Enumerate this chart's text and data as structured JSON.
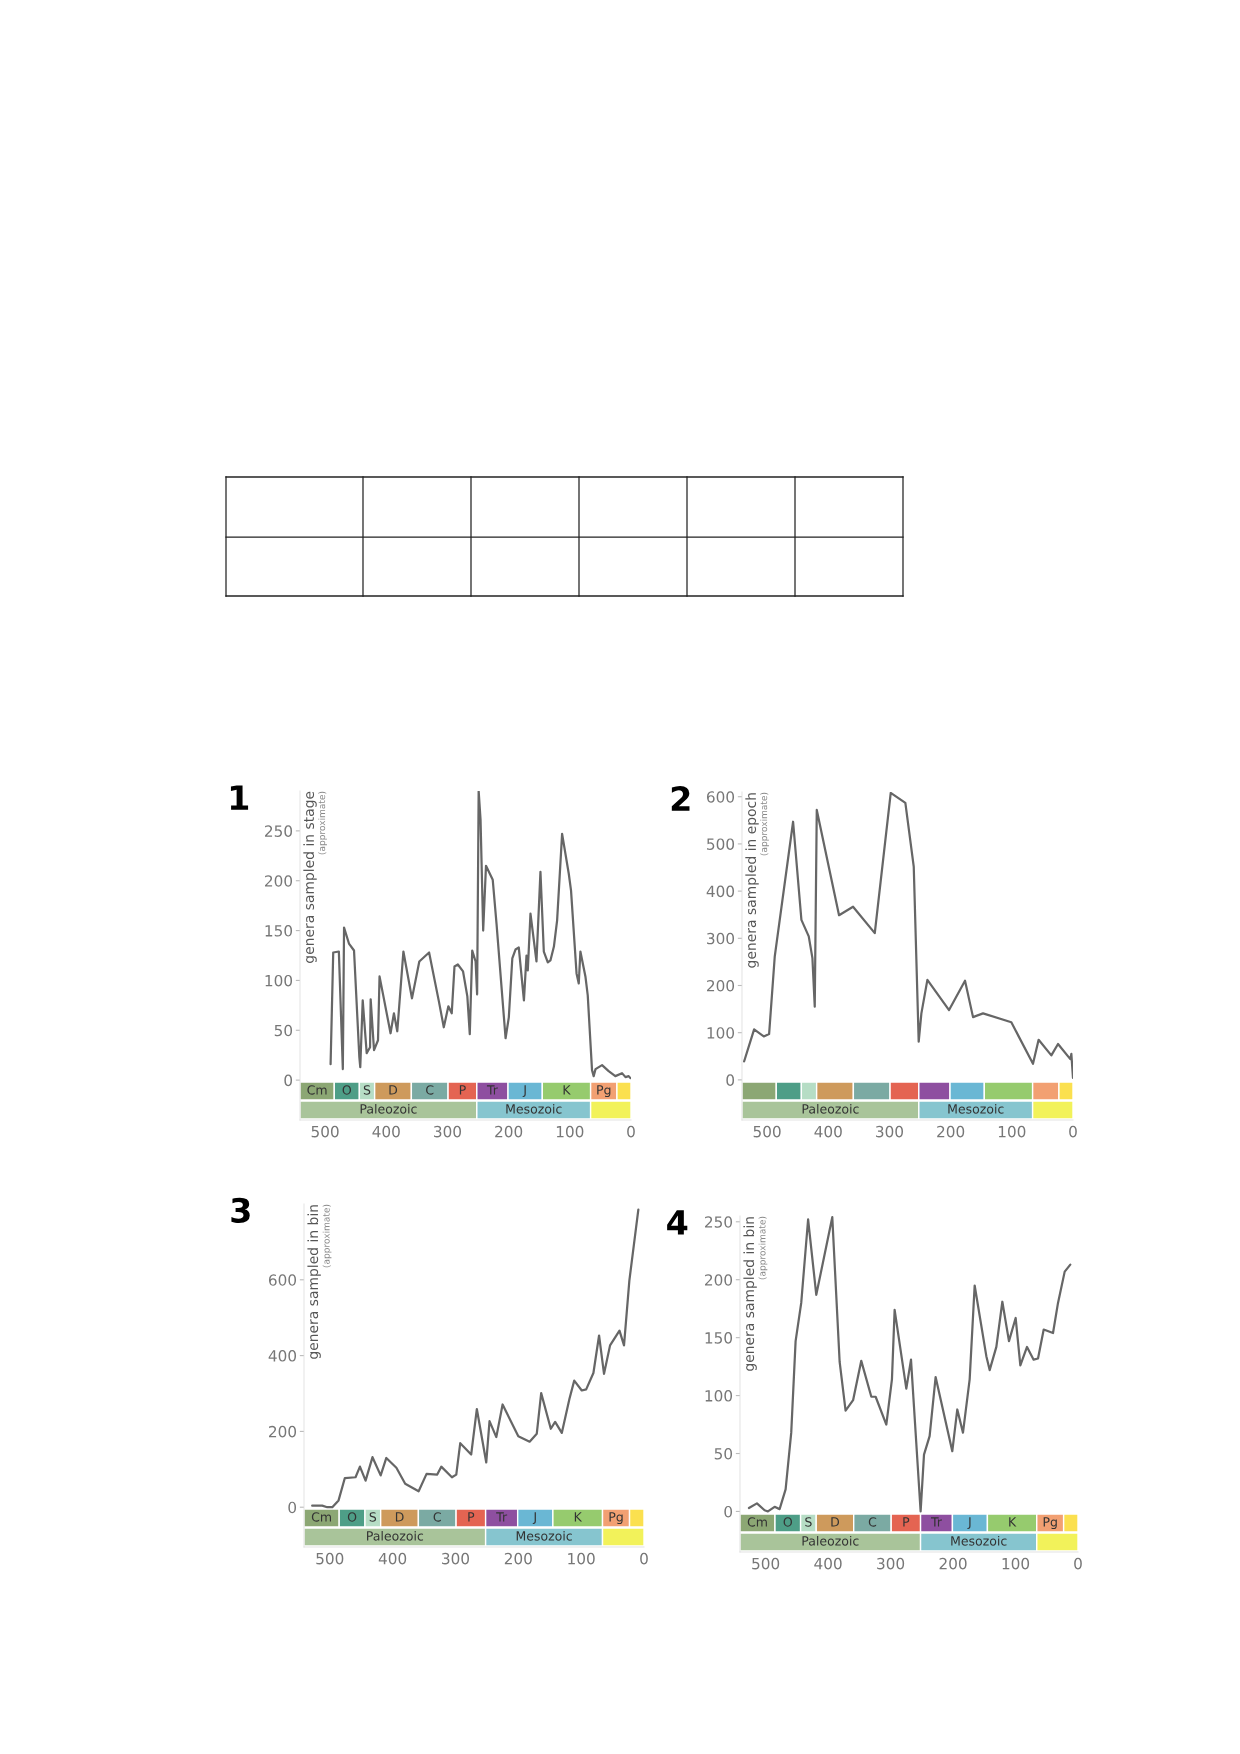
{
  "chart_data": [
    {
      "type": "line",
      "title": "1",
      "ylabel": "genera sampled in stage",
      "annotations": [
        "(approximate)"
      ],
      "color": "#666666",
      "x": [
        491,
        486.7,
        477.5,
        471,
        469,
        461,
        452.7,
        444,
        442.5,
        438.5,
        432,
        426.5,
        425.5,
        420,
        413.5,
        411,
        404,
        393,
        387.5,
        382,
        372,
        358,
        346,
        330,
        314,
        306,
        298.5,
        293,
        288.5,
        283,
        274.5,
        267.5,
        263.5,
        259.5,
        254,
        251.5,
        249,
        245.9,
        241.6,
        237,
        226,
        219.8,
        205,
        199.7,
        194,
        188.8,
        183.4,
        175,
        170.8,
        168.7,
        164.3,
        154.5,
        148,
        142.5,
        136,
        131.7,
        126,
        120.8,
        112.6,
        101.7,
        98,
        89,
        85.4,
        82.7,
        74.5,
        70.7,
        63.7,
        61,
        58,
        47.3,
        36.5,
        25.6,
        14.7,
        9,
        3.8,
        1
      ],
      "values": [
        16,
        128,
        129,
        11,
        153,
        137,
        130,
        23,
        13,
        80,
        27,
        33,
        81,
        30,
        40,
        104,
        82,
        47,
        67,
        49,
        129,
        82,
        119,
        128,
        79,
        53,
        74,
        67,
        114,
        116,
        109,
        84,
        46,
        130,
        119,
        86,
        290,
        261,
        150,
        215,
        201,
        157,
        42,
        63,
        122,
        131,
        133,
        80,
        125,
        110,
        167,
        119,
        209,
        129,
        118,
        120,
        134,
        160,
        247,
        207,
        190,
        107,
        97,
        129,
        104,
        85,
        10,
        4,
        11,
        15,
        9,
        4,
        7,
        3,
        4,
        2
      ],
      "xlim": [
        541,
        0
      ],
      "xticks": [
        500,
        400,
        300,
        200,
        100,
        0
      ],
      "ylim": [
        -40,
        290
      ],
      "yticks": [
        0,
        50,
        100,
        150,
        200,
        250
      ],
      "bands": [
        {
          "axis": "x",
          "from": 541,
          "to": 485,
          "label": "Cm",
          "color": "#8ca774"
        },
        {
          "axis": "x",
          "from": 485,
          "to": 444,
          "label": "O",
          "color": "#4e9e87"
        },
        {
          "axis": "x",
          "from": 444,
          "to": 419,
          "label": "S",
          "color": "#b6ddc5"
        },
        {
          "axis": "x",
          "from": 419,
          "to": 359,
          "label": "D",
          "color": "#ce9a5c"
        },
        {
          "axis": "x",
          "from": 359,
          "to": 299,
          "label": "C",
          "color": "#7baaa3"
        },
        {
          "axis": "x",
          "from": 299,
          "to": 252,
          "label": "P",
          "color": "#e46452"
        },
        {
          "axis": "x",
          "from": 252,
          "to": 201,
          "label": "Tr",
          "color": "#8e4fa0"
        },
        {
          "axis": "x",
          "from": 201,
          "to": 145,
          "label": "J",
          "color": "#6ab7d4"
        },
        {
          "axis": "x",
          "from": 145,
          "to": 66,
          "label": "K",
          "color": "#96cb6e"
        },
        {
          "axis": "x",
          "from": 66,
          "to": 23,
          "label": "Pg",
          "color": "#f2a072"
        },
        {
          "axis": "x",
          "from": 23,
          "to": 0,
          "label": null,
          "color": "#fbe04f"
        },
        {
          "axis": "x",
          "from": 541,
          "to": 252,
          "label": "Paleozoic",
          "color": "#a9c49a"
        },
        {
          "axis": "x",
          "from": 252,
          "to": 66,
          "label": "Mesozoic",
          "color": "#86c5cf"
        },
        {
          "axis": "x",
          "from": 66,
          "to": 0,
          "label": null,
          "color": "#f2f25a"
        }
      ]
    },
    {
      "type": "line",
      "title": "2",
      "ylabel": "genera sampled in epoch",
      "annotations": [
        "(approximate)"
      ],
      "color": "#666666",
      "x": [
        537.6,
        521.2,
        505.4,
        496.7,
        487.5,
        457.5,
        443.9,
        431.9,
        425.9,
        422.1,
        418.8,
        382.4,
        359.5,
        324,
        297.9,
        274,
        260.3,
        252.2,
        247.8,
        238,
        202.6,
        176.5,
        163.4,
        147,
        100.8,
        65.4,
        56.2,
        35.4,
        24.5,
        4.4,
        2.7,
        0
      ],
      "values": [
        39,
        107,
        92,
        97,
        261,
        547,
        339,
        304,
        258,
        155,
        572,
        349,
        367,
        311,
        608,
        587,
        452,
        81,
        141,
        212,
        148,
        210,
        133,
        141,
        122,
        34,
        85,
        52,
        76,
        44,
        55,
        4
      ],
      "xlim": [
        541,
        0
      ],
      "xticks": [
        500,
        400,
        300,
        200,
        100,
        0
      ],
      "ylim": [
        -85,
        610
      ],
      "yticks": [
        0,
        100,
        200,
        300,
        400,
        500,
        600
      ],
      "bands": [
        {
          "axis": "x",
          "from": 541,
          "to": 485,
          "label": null,
          "color": "#8ca774"
        },
        {
          "axis": "x",
          "from": 485,
          "to": 444,
          "label": null,
          "color": "#4e9e87"
        },
        {
          "axis": "x",
          "from": 444,
          "to": 419,
          "label": null,
          "color": "#b6ddc5"
        },
        {
          "axis": "x",
          "from": 419,
          "to": 359,
          "label": null,
          "color": "#ce9a5c"
        },
        {
          "axis": "x",
          "from": 359,
          "to": 299,
          "label": null,
          "color": "#7baaa3"
        },
        {
          "axis": "x",
          "from": 299,
          "to": 252,
          "label": null,
          "color": "#e46452"
        },
        {
          "axis": "x",
          "from": 252,
          "to": 201,
          "label": null,
          "color": "#8e4fa0"
        },
        {
          "axis": "x",
          "from": 201,
          "to": 145,
          "label": null,
          "color": "#6ab7d4"
        },
        {
          "axis": "x",
          "from": 145,
          "to": 66,
          "label": null,
          "color": "#96cb6e"
        },
        {
          "axis": "x",
          "from": 66,
          "to": 23,
          "label": null,
          "color": "#f2a072"
        },
        {
          "axis": "x",
          "from": 23,
          "to": 0,
          "label": null,
          "color": "#fbe04f"
        },
        {
          "axis": "x",
          "from": 541,
          "to": 252,
          "label": "Paleozoic",
          "color": "#a9c49a"
        },
        {
          "axis": "x",
          "from": 252,
          "to": 66,
          "label": "Mesozoic",
          "color": "#86c5cf"
        },
        {
          "axis": "x",
          "from": 66,
          "to": 0,
          "label": null,
          "color": "#f2f25a"
        }
      ]
    },
    {
      "type": "line",
      "title": "3",
      "ylabel": "genera sampled in bin",
      "annotations": [
        "(approximate)"
      ],
      "color": "#666666",
      "x": [
        528,
        512,
        504,
        496,
        486,
        476,
        459,
        452,
        443,
        432,
        419,
        410,
        394,
        380,
        358.6,
        346,
        329,
        322.6,
        305.6,
        298.7,
        292.4,
        275,
        266,
        251,
        245.8,
        235,
        225,
        200,
        182,
        170.6,
        163.6,
        148.3,
        141.4,
        130.8,
        118.6,
        111,
        99,
        92,
        80.5,
        71.5,
        63.6,
        54,
        39,
        31.8,
        23.3,
        9
      ],
      "values": [
        4,
        4,
        0,
        0,
        18,
        77,
        79,
        107,
        70,
        132,
        84,
        130,
        104,
        62,
        42,
        88,
        86,
        107,
        79,
        86,
        169,
        139,
        259,
        118,
        227,
        185,
        271,
        187,
        173,
        194,
        301,
        207,
        225,
        196,
        286,
        334,
        308,
        311,
        354,
        453,
        352,
        427,
        466,
        427,
        598,
        785
      ],
      "xlim": [
        541,
        0
      ],
      "xticks": [
        500,
        400,
        300,
        200,
        100,
        0
      ],
      "ylim": [
        -105,
        800
      ],
      "yticks": [
        0,
        200,
        400,
        600
      ],
      "bands": [
        {
          "axis": "x",
          "from": 541,
          "to": 485,
          "label": "Cm",
          "color": "#8ca774"
        },
        {
          "axis": "x",
          "from": 485,
          "to": 444,
          "label": "O",
          "color": "#4e9e87"
        },
        {
          "axis": "x",
          "from": 444,
          "to": 419,
          "label": "S",
          "color": "#b6ddc5"
        },
        {
          "axis": "x",
          "from": 419,
          "to": 359,
          "label": "D",
          "color": "#ce9a5c"
        },
        {
          "axis": "x",
          "from": 359,
          "to": 299,
          "label": "C",
          "color": "#7baaa3"
        },
        {
          "axis": "x",
          "from": 299,
          "to": 252,
          "label": "P",
          "color": "#e46452"
        },
        {
          "axis": "x",
          "from": 252,
          "to": 201,
          "label": "Tr",
          "color": "#8e4fa0"
        },
        {
          "axis": "x",
          "from": 201,
          "to": 145,
          "label": "J",
          "color": "#6ab7d4"
        },
        {
          "axis": "x",
          "from": 145,
          "to": 66,
          "label": "K",
          "color": "#96cb6e"
        },
        {
          "axis": "x",
          "from": 66,
          "to": 23,
          "label": "Pg",
          "color": "#f2a072"
        },
        {
          "axis": "x",
          "from": 23,
          "to": 0,
          "label": null,
          "color": "#fbe04f"
        },
        {
          "axis": "x",
          "from": 541,
          "to": 252,
          "label": "Paleozoic",
          "color": "#a9c49a"
        },
        {
          "axis": "x",
          "from": 252,
          "to": 66,
          "label": "Mesozoic",
          "color": "#86c5cf"
        },
        {
          "axis": "x",
          "from": 66,
          "to": 0,
          "label": null,
          "color": "#f2f25a"
        }
      ]
    },
    {
      "type": "line",
      "title": "4",
      "ylabel": "genera sampled in bin",
      "annotations": [
        "(approximate)"
      ],
      "color": "#666666",
      "x": [
        526.7,
        513.9,
        501.6,
        496.3,
        485.6,
        477.6,
        468,
        459,
        452,
        443,
        432,
        418.9,
        393.3,
        381.5,
        372,
        360,
        346.9,
        330.8,
        323.9,
        306.8,
        297.8,
        293.5,
        274.8,
        267.3,
        251.9,
        246.5,
        237.5,
        227.9,
        201.2,
        193.2,
        184.1,
        173.4,
        165.4,
        146.7,
        141.4,
        130.7,
        121.1,
        110.5,
        99.8,
        92.3,
        81.6,
        71,
        64,
        54.9,
        40,
        32,
        21.3,
        12.3
      ],
      "values": [
        3,
        7,
        1,
        0,
        4,
        2,
        19,
        68,
        147,
        180,
        252,
        187,
        254,
        129,
        87,
        96,
        130,
        99,
        99,
        75,
        114,
        174,
        106,
        131,
        0,
        49,
        65,
        116,
        52,
        88,
        68,
        114,
        195,
        134,
        122,
        142,
        181,
        147,
        167,
        126,
        142,
        131,
        132,
        157,
        154,
        180,
        207,
        213
      ],
      "xlim": [
        541,
        0
      ],
      "xticks": [
        500,
        400,
        300,
        200,
        100,
        0
      ],
      "ylim": [
        -35,
        255
      ],
      "yticks": [
        0,
        50,
        100,
        150,
        200,
        250
      ],
      "bands": [
        {
          "axis": "x",
          "from": 541,
          "to": 485,
          "label": "Cm",
          "color": "#8ca774"
        },
        {
          "axis": "x",
          "from": 485,
          "to": 444,
          "label": "O",
          "color": "#4e9e87"
        },
        {
          "axis": "x",
          "from": 444,
          "to": 419,
          "label": "S",
          "color": "#b6ddc5"
        },
        {
          "axis": "x",
          "from": 419,
          "to": 359,
          "label": "D",
          "color": "#ce9a5c"
        },
        {
          "axis": "x",
          "from": 359,
          "to": 299,
          "label": "C",
          "color": "#7baaa3"
        },
        {
          "axis": "x",
          "from": 299,
          "to": 252,
          "label": "P",
          "color": "#e46452"
        },
        {
          "axis": "x",
          "from": 252,
          "to": 201,
          "label": "Tr",
          "color": "#8e4fa0"
        },
        {
          "axis": "x",
          "from": 201,
          "to": 145,
          "label": "J",
          "color": "#6ab7d4"
        },
        {
          "axis": "x",
          "from": 145,
          "to": 66,
          "label": "K",
          "color": "#96cb6e"
        },
        {
          "axis": "x",
          "from": 66,
          "to": 23,
          "label": "Pg",
          "color": "#f2a072"
        },
        {
          "axis": "x",
          "from": 23,
          "to": 0,
          "label": null,
          "color": "#fbe04f"
        },
        {
          "axis": "x",
          "from": 541,
          "to": 252,
          "label": "Paleozoic",
          "color": "#a9c49a"
        },
        {
          "axis": "x",
          "from": 252,
          "to": 66,
          "label": "Mesozoic",
          "color": "#86c5cf"
        },
        {
          "axis": "x",
          "from": 66,
          "to": 0,
          "label": null,
          "color": "#f2f25a"
        }
      ]
    }
  ]
}
